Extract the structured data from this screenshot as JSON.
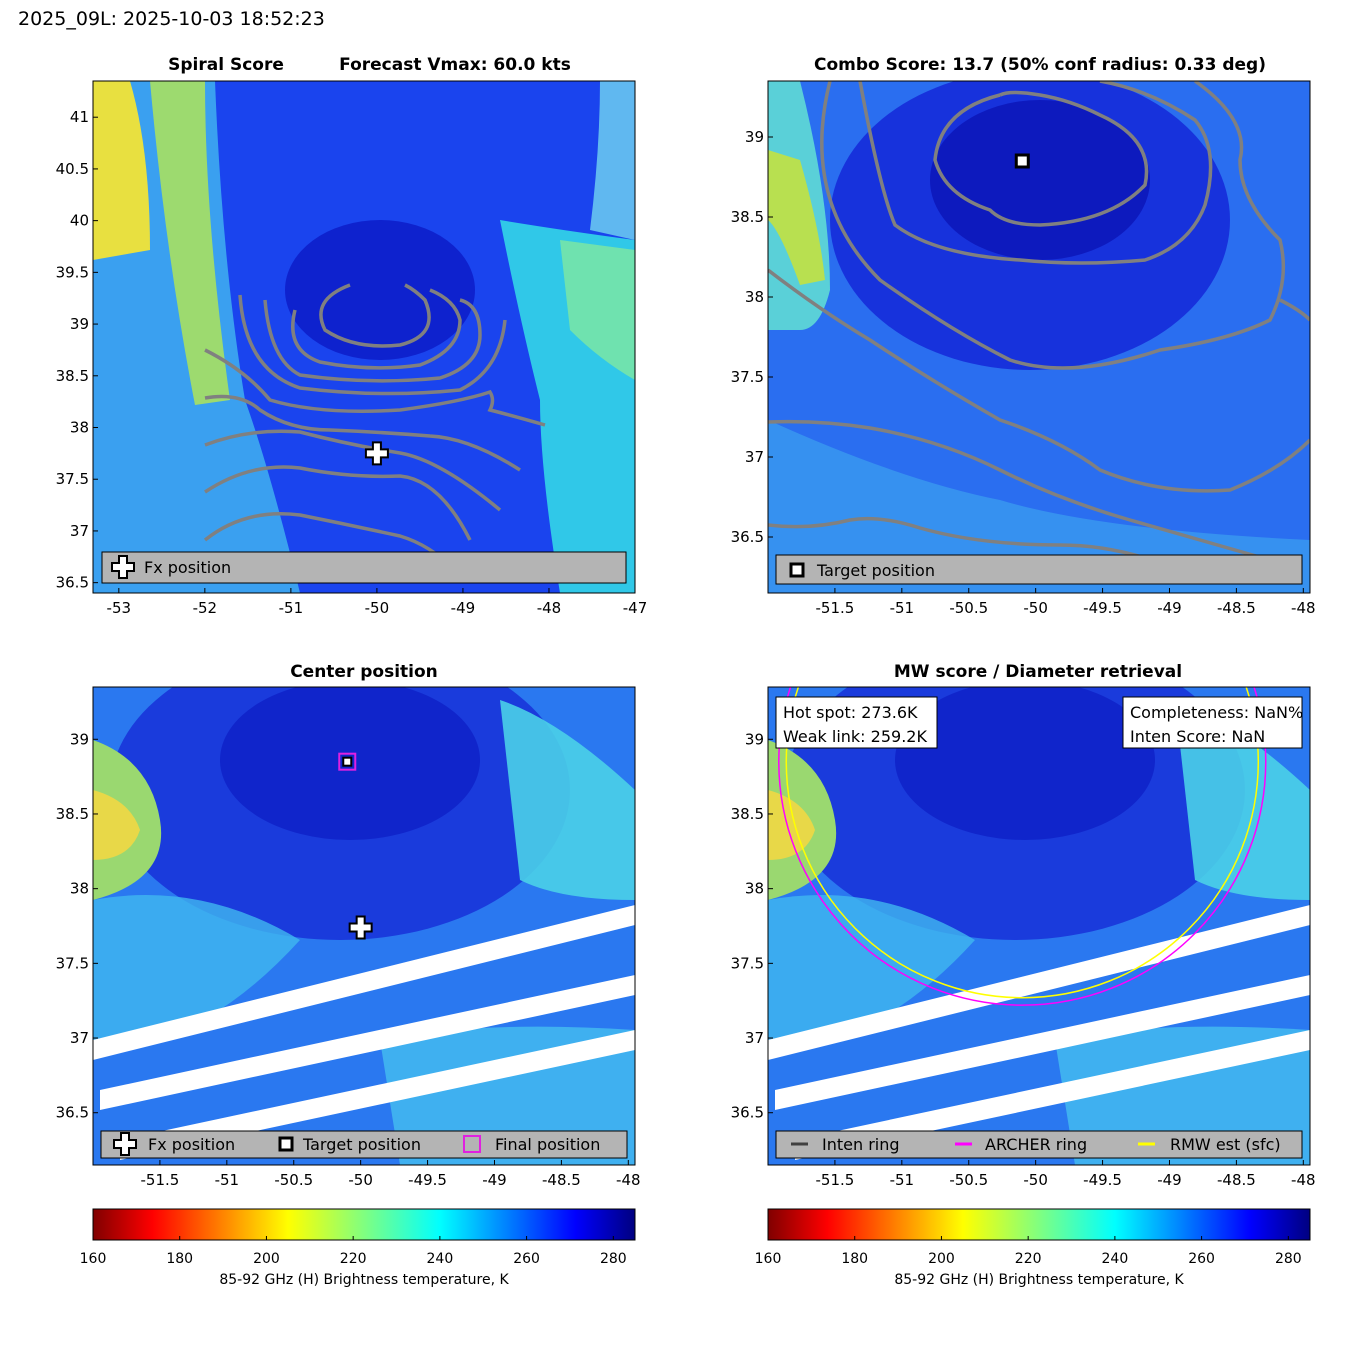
{
  "page_title": "2025_09L: 2025-10-03 18:52:23",
  "colors": {
    "contour": "#808080",
    "legend_bg": "#b4b4b4",
    "archer_ring": "#ff00ff",
    "rmw_ring": "#ffff00",
    "inten_ring": "#404040",
    "final_marker": "#e020e0"
  },
  "chart_data": [
    {
      "type": "heatmap",
      "id": "spiral",
      "title_left": "Spiral Score",
      "title_right": "Forecast Vmax: 60.0 kts",
      "xlim": [
        -53.3,
        -47
      ],
      "ylim": [
        36.4,
        41.35
      ],
      "xticks": [
        "-53",
        "-52",
        "-51",
        "-50",
        "-49",
        "-48",
        "-47"
      ],
      "yticks": [
        "36.5",
        "37",
        "37.5",
        "38",
        "38.5",
        "39",
        "39.5",
        "40",
        "40.5",
        "41"
      ],
      "fx_position": {
        "lon": -50.0,
        "lat": 37.75
      },
      "legend": [
        "Fx position"
      ]
    },
    {
      "type": "heatmap",
      "id": "combo",
      "title": "Combo Score: 13.7  (50% conf radius: 0.33 deg)",
      "xlim": [
        -52,
        -47.95
      ],
      "ylim": [
        36.15,
        39.35
      ],
      "xticks": [
        "-51.5",
        "-51",
        "-50.5",
        "-50",
        "-49.5",
        "-49",
        "-48.5",
        "-48"
      ],
      "yticks": [
        "36.5",
        "37",
        "37.5",
        "38",
        "38.5",
        "39"
      ],
      "target_position": {
        "lon": -50.1,
        "lat": 38.85
      },
      "legend": [
        "Target position"
      ]
    },
    {
      "type": "heatmap",
      "id": "center",
      "title": "Center position",
      "xlim": [
        -52,
        -47.95
      ],
      "ylim": [
        36.15,
        39.35
      ],
      "xticks": [
        "-51.5",
        "-51",
        "-50.5",
        "-50",
        "-49.5",
        "-49",
        "-48.5",
        "-48"
      ],
      "yticks": [
        "36.5",
        "37",
        "37.5",
        "38",
        "38.5",
        "39"
      ],
      "fx_position": {
        "lon": -50.0,
        "lat": 37.74
      },
      "target_position": {
        "lon": -50.1,
        "lat": 38.85
      },
      "final_position": {
        "lon": -50.1,
        "lat": 38.85
      },
      "legend": [
        "Fx position",
        "Target position",
        "Final position"
      ]
    },
    {
      "type": "heatmap",
      "id": "mw",
      "title": "MW score / Diameter retrieval",
      "xlim": [
        -52,
        -47.95
      ],
      "ylim": [
        36.15,
        39.35
      ],
      "xticks": [
        "-51.5",
        "-51",
        "-50.5",
        "-50",
        "-49.5",
        "-49",
        "-48.5",
        "-48"
      ],
      "yticks": [
        "36.5",
        "37",
        "37.5",
        "38",
        "38.5",
        "39"
      ],
      "ring_center": {
        "lon": -50.1,
        "lat": 38.85
      },
      "archer_ring_radius_deg": 1.63,
      "rmw_ring_radius_deg": 1.58,
      "info_left": [
        "Hot spot: 273.6K",
        "Weak link: 259.2K"
      ],
      "info_right": [
        "Completeness: NaN%",
        "Inten Score: NaN"
      ],
      "legend": [
        "Inten ring",
        "ARCHER ring",
        "RMW est (sfc)"
      ]
    }
  ],
  "colorbar": {
    "min": 160,
    "max": 285,
    "ticks": [
      "160",
      "180",
      "200",
      "220",
      "240",
      "260",
      "280"
    ],
    "label": "85-92 GHz (H) Brightness temperature, K"
  }
}
